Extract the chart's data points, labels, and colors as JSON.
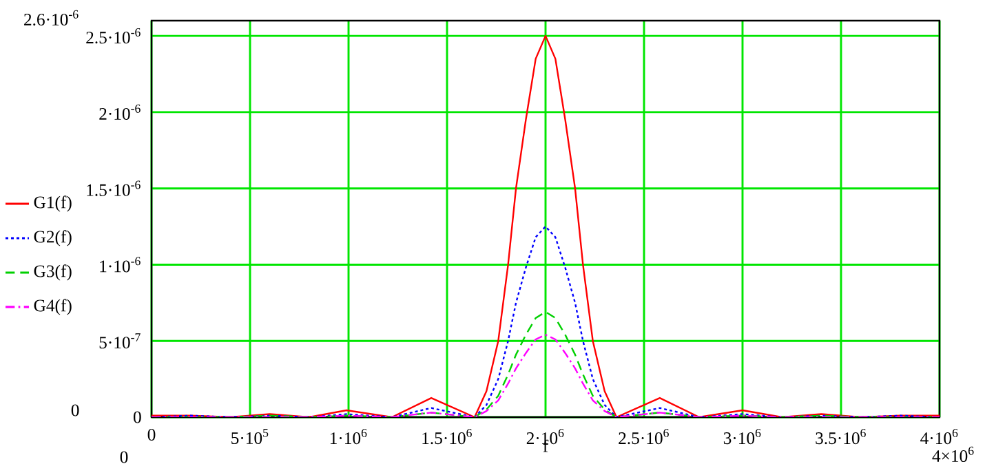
{
  "chart_data": {
    "type": "line",
    "xlabel": "f",
    "x": [
      0,
      200000,
      400000,
      600000,
      800000,
      990000,
      1220000,
      1420000,
      1640000,
      1700000,
      1760000,
      1810000,
      1850000,
      1900000,
      1950000,
      2000000,
      2050000,
      2100000,
      2150000,
      2190000,
      2240000,
      2300000,
      2360000,
      2580000,
      2780000,
      3000000,
      3200000,
      3400000,
      3600000,
      3800000,
      4000000
    ],
    "series": [
      {
        "name": "G1(f)",
        "color": "#ff0000",
        "line_style": "solid",
        "values": [
          1e-08,
          1e-08,
          0,
          2e-08,
          0,
          4.5e-08,
          0,
          1.26e-07,
          0,
          1.7e-07,
          5e-07,
          1e-06,
          1.5e-06,
          1.95e-06,
          2.35e-06,
          2.5e-06,
          2.35e-06,
          1.95e-06,
          1.5e-06,
          1e-06,
          5e-07,
          1.7e-07,
          0,
          1.26e-07,
          0,
          4.5e-08,
          0,
          2e-08,
          0,
          1e-08,
          1e-08
        ]
      },
      {
        "name": "G2(f)",
        "color": "#0000ff",
        "line_style": "dotted",
        "values": [
          0,
          1e-08,
          0,
          1e-08,
          0,
          2e-08,
          0,
          6e-08,
          0,
          8e-08,
          2.5e-07,
          5e-07,
          7.5e-07,
          9.8e-07,
          1.18e-06,
          1.25e-06,
          1.18e-06,
          9.8e-07,
          7.5e-07,
          5e-07,
          2.5e-07,
          8e-08,
          0,
          6e-08,
          0,
          2e-08,
          0,
          1e-08,
          0,
          1e-08,
          0
        ]
      },
      {
        "name": "G3(f)",
        "color": "#00d000",
        "line_style": "dashed",
        "values": [
          0,
          0,
          0,
          1e-08,
          0,
          1e-08,
          0,
          3e-08,
          0,
          5e-08,
          1.4e-07,
          2.8e-07,
          4.1e-07,
          5.4e-07,
          6.5e-07,
          6.9e-07,
          6.5e-07,
          5.4e-07,
          4.1e-07,
          2.8e-07,
          1.4e-07,
          5e-08,
          0,
          3e-08,
          0,
          1e-08,
          0,
          1e-08,
          0,
          0,
          0
        ]
      },
      {
        "name": "G4(f)",
        "color": "#ff00ff",
        "line_style": "dashdot",
        "values": [
          0,
          0,
          0,
          0,
          0,
          1e-08,
          0,
          3e-08,
          0,
          4e-08,
          1.1e-07,
          2.2e-07,
          3.2e-07,
          4.2e-07,
          5.1e-07,
          5.4e-07,
          5.1e-07,
          4.2e-07,
          3.2e-07,
          2.2e-07,
          1.1e-07,
          4e-08,
          0,
          3e-08,
          0,
          1e-08,
          0,
          0,
          0,
          0,
          0
        ]
      }
    ],
    "xlim": [
      0,
      4000000
    ],
    "ylim": [
      0,
      2.6e-06
    ],
    "xticks": [
      0,
      {
        "value": 500000,
        "label": "5·10$^{5}$"
      },
      {
        "value": 1000000,
        "label": "1·10$^{6}$"
      },
      {
        "value": 1500000,
        "label": "1.5·10$^{6}$"
      },
      {
        "value": 2000000,
        "label": "2·10$^{6}$"
      },
      {
        "value": 2500000,
        "label": "2.5·10$^{6}$"
      },
      {
        "value": 3000000,
        "label": "3·10$^{6}$"
      },
      {
        "value": 3500000,
        "label": "3.5·10$^{6}$"
      },
      {
        "value": 4000000,
        "label": "4·10$^{6}$"
      }
    ],
    "yticks": [
      0,
      {
        "value": 5e-07,
        "label": "5·10$^{-7}$"
      },
      {
        "value": 1e-06,
        "label": "1·10$^{-6}$"
      },
      {
        "value": 1.5e-06,
        "label": "1.5·10$^{-6}$"
      },
      {
        "value": 2e-06,
        "label": "2·10$^{-6}$"
      },
      {
        "value": 2.5e-06,
        "label": "2.5·10$^{-6}$"
      }
    ],
    "annotations": [
      "2.6·10$^{-6}$",
      "0",
      "0",
      "4×10$^{6}$"
    ],
    "grid": true,
    "legend": "left"
  }
}
